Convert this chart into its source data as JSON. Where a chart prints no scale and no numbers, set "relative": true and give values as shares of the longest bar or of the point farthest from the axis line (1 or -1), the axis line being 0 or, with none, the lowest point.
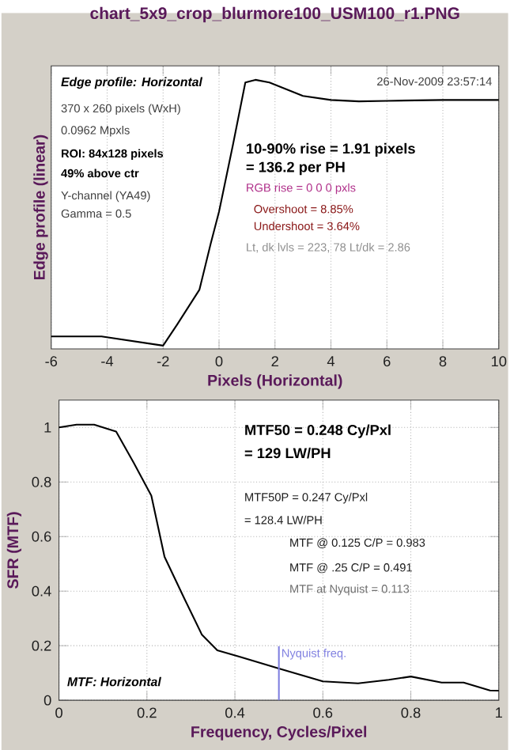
{
  "chart_data": [
    {
      "type": "line",
      "title": "chart_5x9_crop_blurmore100_USM100_r1.PNG",
      "xlabel": "Pixels (Horizontal)",
      "ylabel": "Edge profile (linear)",
      "relative": true,
      "x": [
        -6,
        -4.2,
        -2,
        -1.5,
        -0.7,
        -0.3,
        0,
        0.5,
        0.94,
        1.3,
        1.8,
        3,
        4,
        5,
        6,
        8,
        10
      ],
      "series": [
        {
          "color": "#000000",
          "values": [
            0.046,
            0.046,
            0.012,
            0.09,
            0.22,
            0.39,
            0.51,
            0.76,
            0.99,
            1.0,
            0.99,
            0.94,
            0.925,
            0.92,
            0.922,
            0.925,
            0.925
          ]
        }
      ],
      "xlim": [
        -6,
        10
      ],
      "xticks": [
        -6,
        -4,
        -2,
        0,
        2,
        4,
        6,
        8,
        10
      ],
      "grid": "x",
      "marker": "none",
      "line_style": "solid",
      "annotations": [
        "Edge profile: Horizontal",
        "26-Nov-2009 23:57:14",
        "370 x 260 pixels (WxH)",
        "0.0962 Mpxls",
        "ROI:  84x128 pixels",
        "49% above ctr",
        "Y-channel  (YA49)",
        "Gamma = 0.5",
        "10-90% rise = 1.91 pixels",
        "= 136.2 per PH",
        "RGB rise = 0  0  0 pxls",
        "Overshoot = 8.85%",
        "Undershoot = 3.64%",
        "Lt, dk lvls = 223, 78   Lt/dk = 2.86"
      ]
    },
    {
      "type": "line",
      "xlabel": "Frequency, Cycles/Pixel",
      "ylabel": "SFR (MTF)",
      "x": [
        0,
        0.04,
        0.08,
        0.13,
        0.17,
        0.21,
        0.24,
        0.285,
        0.325,
        0.36,
        0.41,
        0.44,
        0.5,
        0.6,
        0.68,
        0.75,
        0.8,
        0.87,
        0.92,
        0.98,
        1.0
      ],
      "series": [
        {
          "color": "#000000",
          "values": [
            1.0,
            1.01,
            1.01,
            0.985,
            0.87,
            0.75,
            0.526,
            0.373,
            0.24,
            0.183,
            0.16,
            0.145,
            0.116,
            0.069,
            0.062,
            0.075,
            0.087,
            0.065,
            0.065,
            0.036,
            0.035
          ]
        }
      ],
      "xlim": [
        0,
        1
      ],
      "xticks": [
        0,
        0.2,
        0.4,
        0.6,
        0.8,
        1
      ],
      "ylim": [
        0,
        1.1
      ],
      "yticks": [
        0,
        0.2,
        0.4,
        0.6,
        0.8,
        1
      ],
      "grid": true,
      "marker": "none",
      "line_style": "solid",
      "ref_lines": [
        {
          "axis": "x",
          "value": 0.5,
          "label": "Nyquist freq.",
          "color": "#8080e0"
        }
      ],
      "annotations": [
        "MTF50 = 0.248 Cy/Pxl",
        "= 129 LW/PH",
        "MTF50P = 0.247 Cy/Pxl",
        "= 128.4 LW/PH",
        "MTF @ 0.125 C/P = 0.983",
        "MTF @ .25 C/P = 0.491",
        "MTF at Nyquist = 0.113",
        "MTF: Horizontal"
      ]
    }
  ]
}
